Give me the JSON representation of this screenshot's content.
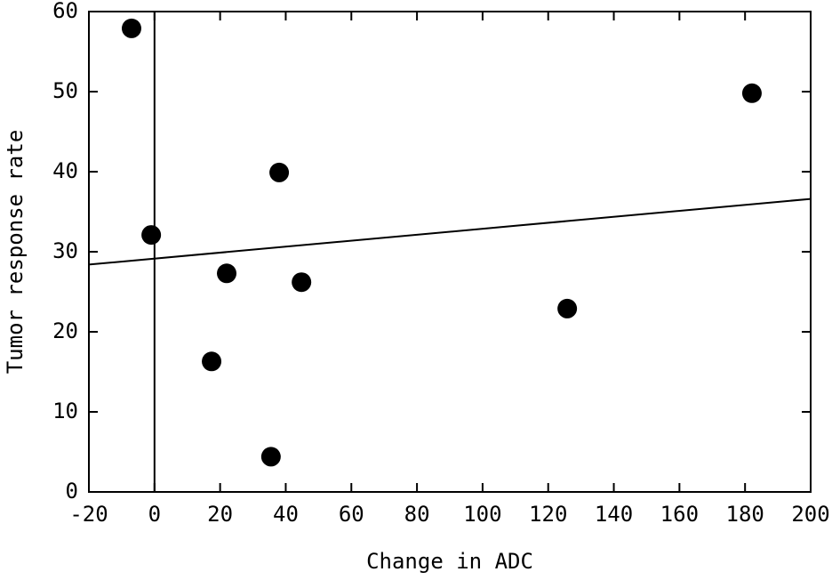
{
  "chart_data": {
    "type": "scatter",
    "x_label": "Change in ADC",
    "y_label": "Tumor response rate",
    "x": [
      -7,
      -1,
      17.4,
      22,
      35.5,
      38,
      44.8,
      125.8,
      182.1
    ],
    "series": [
      {
        "color": "#000000",
        "values": [
          57.9,
          32.1,
          16.3,
          27.3,
          4.4,
          39.9,
          26.2,
          22.9,
          49.8
        ]
      }
    ],
    "trend_line": {
      "x": [
        -20,
        200
      ],
      "y": [
        28.4,
        36.6
      ]
    },
    "vline_x": 0,
    "xlim": [
      -20,
      200
    ],
    "xticks": [
      -20,
      0,
      20,
      40,
      60,
      80,
      100,
      120,
      140,
      160,
      180,
      200
    ],
    "ylim": [
      0,
      60
    ],
    "yticks": [
      0,
      10,
      20,
      30,
      40,
      50,
      60
    ]
  }
}
